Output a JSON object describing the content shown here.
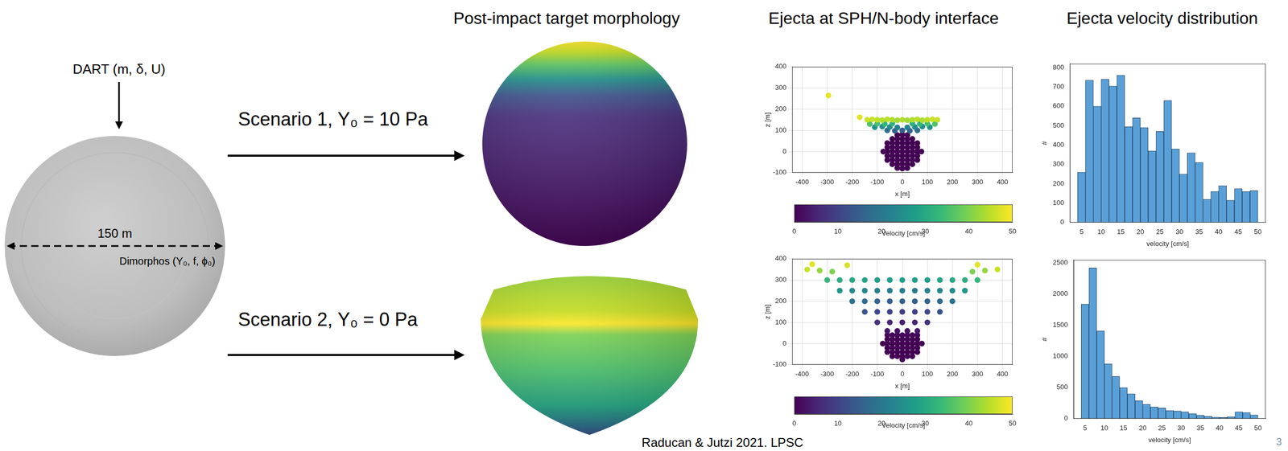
{
  "column_titles": [
    "Post-impact target morphology",
    "Ejecta at SPH/N-body interface",
    "Ejecta velocity distribution"
  ],
  "diagram": {
    "impactor_label": "DART (m, δ, U)",
    "diameter_label": "150 m",
    "target_label": "Dimorphos (Y₀, f, ϕ₀)",
    "scenarios": [
      "Scenario 1, Y₀ = 10 Pa",
      "Scenario 2, Y₀ = 0 Pa"
    ]
  },
  "chart_data": [
    {
      "type": "scatter",
      "xlabel": "x [m]",
      "ylabel": "z [m]",
      "xlim": [
        -440,
        440
      ],
      "xticks": [
        -400,
        -300,
        -200,
        -100,
        0,
        100,
        200,
        300,
        400
      ],
      "ylim": [
        -100,
        400
      ],
      "yticks": [
        -100,
        0,
        100,
        200,
        300,
        400
      ],
      "grid": true,
      "points": [
        [
          -40,
          60,
          0
        ],
        [
          -20,
          60,
          0
        ],
        [
          0,
          60,
          0
        ],
        [
          20,
          60,
          0
        ],
        [
          40,
          60,
          0
        ],
        [
          -20,
          78,
          0
        ],
        [
          0,
          80,
          0
        ],
        [
          20,
          78,
          0
        ],
        [
          -60,
          40,
          0
        ],
        [
          -40,
          40,
          0
        ],
        [
          -20,
          40,
          0
        ],
        [
          0,
          40,
          0
        ],
        [
          20,
          40,
          0
        ],
        [
          40,
          40,
          0
        ],
        [
          60,
          40,
          0
        ],
        [
          -60,
          20,
          0
        ],
        [
          -40,
          20,
          0
        ],
        [
          -20,
          20,
          0
        ],
        [
          0,
          20,
          0
        ],
        [
          20,
          20,
          0
        ],
        [
          40,
          20,
          0
        ],
        [
          60,
          20,
          0
        ],
        [
          -76,
          0,
          0
        ],
        [
          -60,
          0,
          0
        ],
        [
          -40,
          0,
          0
        ],
        [
          -20,
          0,
          0
        ],
        [
          0,
          0,
          0
        ],
        [
          20,
          0,
          0
        ],
        [
          40,
          0,
          0
        ],
        [
          60,
          0,
          0
        ],
        [
          76,
          0,
          0
        ],
        [
          -60,
          -20,
          0
        ],
        [
          -40,
          -20,
          0
        ],
        [
          -20,
          -20,
          0
        ],
        [
          0,
          -20,
          0
        ],
        [
          20,
          -20,
          0
        ],
        [
          40,
          -20,
          0
        ],
        [
          60,
          -20,
          0
        ],
        [
          -60,
          -40,
          0
        ],
        [
          -40,
          -40,
          0
        ],
        [
          -20,
          -40,
          0
        ],
        [
          0,
          -40,
          0
        ],
        [
          20,
          -40,
          0
        ],
        [
          40,
          -40,
          0
        ],
        [
          60,
          -40,
          0
        ],
        [
          -40,
          -60,
          0
        ],
        [
          -20,
          -60,
          0
        ],
        [
          0,
          -60,
          0
        ],
        [
          20,
          -60,
          0
        ],
        [
          40,
          -60,
          0
        ],
        [
          -20,
          -78,
          0
        ],
        [
          0,
          -80,
          0
        ],
        [
          20,
          -78,
          0
        ],
        [
          -60,
          100,
          18
        ],
        [
          -30,
          98,
          16
        ],
        [
          0,
          100,
          15
        ],
        [
          30,
          98,
          16
        ],
        [
          60,
          100,
          18
        ],
        [
          -110,
          115,
          26
        ],
        [
          -80,
          118,
          25
        ],
        [
          -50,
          116,
          24
        ],
        [
          -20,
          114,
          22
        ],
        [
          20,
          114,
          22
        ],
        [
          50,
          116,
          24
        ],
        [
          80,
          118,
          25
        ],
        [
          110,
          115,
          26
        ],
        [
          -130,
          130,
          36
        ],
        [
          -100,
          132,
          35
        ],
        [
          -70,
          130,
          33
        ],
        [
          -40,
          132,
          32
        ],
        [
          40,
          132,
          32
        ],
        [
          70,
          130,
          33
        ],
        [
          100,
          132,
          35
        ],
        [
          130,
          130,
          36
        ],
        [
          -140,
          150,
          46
        ],
        [
          -120,
          152,
          46
        ],
        [
          -100,
          150,
          45
        ],
        [
          -80,
          148,
          44
        ],
        [
          -60,
          152,
          45
        ],
        [
          -40,
          150,
          44
        ],
        [
          -20,
          148,
          43
        ],
        [
          0,
          150,
          44
        ],
        [
          20,
          148,
          43
        ],
        [
          40,
          150,
          44
        ],
        [
          60,
          152,
          45
        ],
        [
          80,
          148,
          44
        ],
        [
          100,
          150,
          45
        ],
        [
          120,
          152,
          46
        ],
        [
          140,
          150,
          46
        ],
        [
          -170,
          162,
          48
        ],
        [
          -295,
          265,
          48
        ]
      ],
      "colorbar": {
        "label": "Velocity [cm/s]",
        "range": [
          0,
          50
        ],
        "ticks": [
          0,
          10,
          20,
          30,
          40,
          50
        ]
      }
    },
    {
      "type": "scatter",
      "xlabel": "x [m]",
      "ylabel": "z [m]",
      "xlim": [
        -440,
        440
      ],
      "xticks": [
        -400,
        -300,
        -200,
        -100,
        0,
        100,
        200,
        300,
        400
      ],
      "ylim": [
        -100,
        400
      ],
      "yticks": [
        -100,
        0,
        100,
        200,
        300,
        400
      ],
      "grid": true,
      "points": [
        [
          -60,
          40,
          1
        ],
        [
          -40,
          40,
          1
        ],
        [
          -20,
          40,
          1
        ],
        [
          0,
          40,
          1
        ],
        [
          20,
          40,
          1
        ],
        [
          40,
          40,
          1
        ],
        [
          60,
          40,
          1
        ],
        [
          -60,
          20,
          0
        ],
        [
          -40,
          20,
          0
        ],
        [
          -20,
          20,
          0
        ],
        [
          0,
          20,
          0
        ],
        [
          20,
          20,
          0
        ],
        [
          40,
          20,
          0
        ],
        [
          60,
          20,
          0
        ],
        [
          -78,
          0,
          0
        ],
        [
          -60,
          0,
          0
        ],
        [
          -40,
          0,
          0
        ],
        [
          -20,
          0,
          0
        ],
        [
          0,
          0,
          0
        ],
        [
          20,
          0,
          0
        ],
        [
          40,
          0,
          0
        ],
        [
          60,
          0,
          0
        ],
        [
          78,
          0,
          0
        ],
        [
          -60,
          -20,
          0
        ],
        [
          -40,
          -20,
          0
        ],
        [
          -20,
          -20,
          0
        ],
        [
          0,
          -20,
          0
        ],
        [
          20,
          -20,
          0
        ],
        [
          40,
          -20,
          0
        ],
        [
          60,
          -20,
          0
        ],
        [
          -60,
          -40,
          0
        ],
        [
          -40,
          -40,
          0
        ],
        [
          -20,
          -40,
          0
        ],
        [
          0,
          -40,
          0
        ],
        [
          20,
          -40,
          0
        ],
        [
          40,
          -40,
          0
        ],
        [
          60,
          -40,
          0
        ],
        [
          -40,
          -60,
          0
        ],
        [
          -20,
          -60,
          0
        ],
        [
          0,
          -60,
          0
        ],
        [
          20,
          -60,
          0
        ],
        [
          40,
          -60,
          0
        ],
        [
          0,
          -75,
          0
        ],
        [
          -60,
          60,
          3
        ],
        [
          -20,
          60,
          2
        ],
        [
          20,
          60,
          2
        ],
        [
          60,
          60,
          3
        ],
        [
          -100,
          100,
          7
        ],
        [
          -50,
          100,
          5
        ],
        [
          0,
          100,
          4
        ],
        [
          50,
          100,
          5
        ],
        [
          100,
          100,
          7
        ],
        [
          -150,
          150,
          13
        ],
        [
          -100,
          150,
          11
        ],
        [
          -50,
          150,
          10
        ],
        [
          0,
          150,
          9
        ],
        [
          50,
          150,
          10
        ],
        [
          100,
          150,
          11
        ],
        [
          150,
          150,
          13
        ],
        [
          -200,
          200,
          19
        ],
        [
          -150,
          200,
          17
        ],
        [
          -100,
          200,
          16
        ],
        [
          -50,
          200,
          15
        ],
        [
          0,
          200,
          15
        ],
        [
          50,
          200,
          15
        ],
        [
          100,
          200,
          16
        ],
        [
          150,
          200,
          17
        ],
        [
          200,
          200,
          19
        ],
        [
          -250,
          250,
          26
        ],
        [
          -200,
          250,
          24
        ],
        [
          -150,
          250,
          23
        ],
        [
          -100,
          250,
          22
        ],
        [
          -50,
          250,
          21
        ],
        [
          0,
          250,
          21
        ],
        [
          50,
          250,
          21
        ],
        [
          100,
          250,
          22
        ],
        [
          150,
          250,
          23
        ],
        [
          200,
          250,
          24
        ],
        [
          250,
          250,
          26
        ],
        [
          -300,
          300,
          33
        ],
        [
          -250,
          300,
          31
        ],
        [
          -200,
          300,
          30
        ],
        [
          -150,
          300,
          29
        ],
        [
          -100,
          300,
          28
        ],
        [
          -50,
          300,
          28
        ],
        [
          0,
          300,
          28
        ],
        [
          50,
          300,
          28
        ],
        [
          100,
          300,
          28
        ],
        [
          150,
          300,
          29
        ],
        [
          200,
          300,
          30
        ],
        [
          250,
          300,
          31
        ],
        [
          300,
          300,
          33
        ],
        [
          -380,
          350,
          46
        ],
        [
          -330,
          345,
          42
        ],
        [
          -280,
          340,
          40
        ],
        [
          280,
          340,
          40
        ],
        [
          330,
          345,
          42
        ],
        [
          380,
          350,
          46
        ],
        [
          -360,
          375,
          48
        ],
        [
          -220,
          370,
          47
        ],
        [
          300,
          372,
          48
        ]
      ],
      "colorbar": {
        "label": "Velocity [cm/s]",
        "range": [
          0,
          50
        ],
        "ticks": [
          0,
          10,
          20,
          30,
          40,
          50
        ]
      }
    },
    {
      "type": "histogram",
      "xlabel": "velocity [cm/s]",
      "ylabel": "#",
      "color": "#5aa0d8",
      "grid": false,
      "bins": [
        4,
        6,
        8,
        10,
        12,
        14,
        16,
        18,
        20,
        22,
        24,
        26,
        28,
        30,
        32,
        34,
        36,
        38,
        40,
        42,
        44,
        46,
        48,
        50
      ],
      "counts": [
        260,
        735,
        600,
        740,
        705,
        760,
        495,
        540,
        490,
        370,
        470,
        630,
        380,
        250,
        360,
        310,
        120,
        160,
        190,
        115,
        175,
        160,
        165
      ],
      "xlim": [
        2,
        52
      ],
      "xticks": [
        5,
        10,
        15,
        20,
        25,
        30,
        35,
        40,
        45,
        50
      ],
      "ylim": [
        0,
        820
      ],
      "yticks": [
        0,
        100,
        200,
        300,
        400,
        500,
        600,
        700,
        800
      ]
    },
    {
      "type": "histogram",
      "xlabel": "velocity [cm/s]",
      "ylabel": "#",
      "color": "#5aa0d8",
      "grid": false,
      "bins": [
        4,
        6,
        8,
        10,
        12,
        14,
        16,
        18,
        20,
        22,
        24,
        26,
        28,
        30,
        32,
        34,
        36,
        38,
        40,
        42,
        44,
        46,
        48,
        50
      ],
      "counts": [
        1840,
        2420,
        1410,
        880,
        680,
        500,
        400,
        290,
        230,
        190,
        170,
        130,
        125,
        110,
        80,
        55,
        40,
        25,
        20,
        30,
        110,
        100,
        60
      ],
      "xlim": [
        2,
        52
      ],
      "xticks": [
        5,
        10,
        15,
        20,
        25,
        30,
        35,
        40,
        45,
        50
      ],
      "ylim": [
        0,
        2550
      ],
      "yticks": [
        0,
        500,
        1000,
        1500,
        2000,
        2500
      ]
    }
  ],
  "citation": "Raducan & Jutzi 2021. LPSC",
  "page_number": "3"
}
